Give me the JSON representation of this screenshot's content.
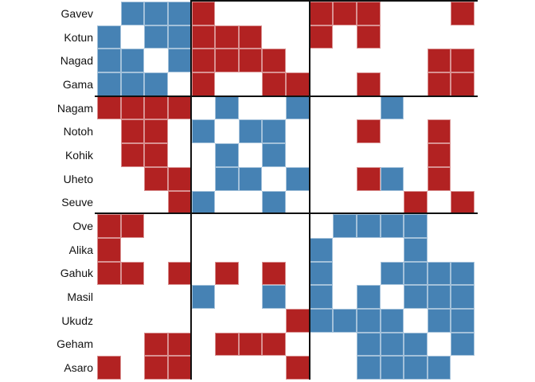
{
  "chart_data": {
    "type": "heatmap",
    "title": "",
    "xlabel": "",
    "ylabel": "",
    "legend": null,
    "row_labels": [
      "Gavev",
      "Kotun",
      "Nagad",
      "Gama",
      "Nagam",
      "Notoh",
      "Kohik",
      "Uheto",
      "Seuve",
      "Ove",
      "Alika",
      "Gahuk",
      "Masil",
      "Ukudz",
      "Geham",
      "Asaro"
    ],
    "cluster_sizes": [
      4,
      5,
      7
    ],
    "cluster_separators_after_rows": [
      4,
      9
    ],
    "cell_legend": {
      "B": "blue cell",
      "R": "red cell",
      ".": "empty cell"
    },
    "matrix": [
      ".BBBR....RRR...R",
      "B.BBRRR..R.R....",
      "BB.BRRRR......RR",
      "BBB.R..RR..R..RR",
      "RRRR.B..B...B...",
      ".RR.B.BB...R..R.",
      ".RR..B.B......R.",
      "..RR.BB.B..RB.R.",
      "...RB..B.....R.R",
      "RR........BBBB..",
      "R........B...B..",
      "RR.R.R.R.B..BBBB",
      "....B..B.B.B.BBB",
      "........RBBBB.BB",
      "..RR.RRR...BBB.B",
      "R.RR....R..BBBB."
    ],
    "colors": {
      "blue": "#4682b4",
      "red": "#b22222",
      "background": "#ffffff",
      "separator_line": "#111111"
    },
    "grid": "off",
    "notes": "16x16 symmetric block matrix; rows and columns in same order; no column labels visible"
  }
}
